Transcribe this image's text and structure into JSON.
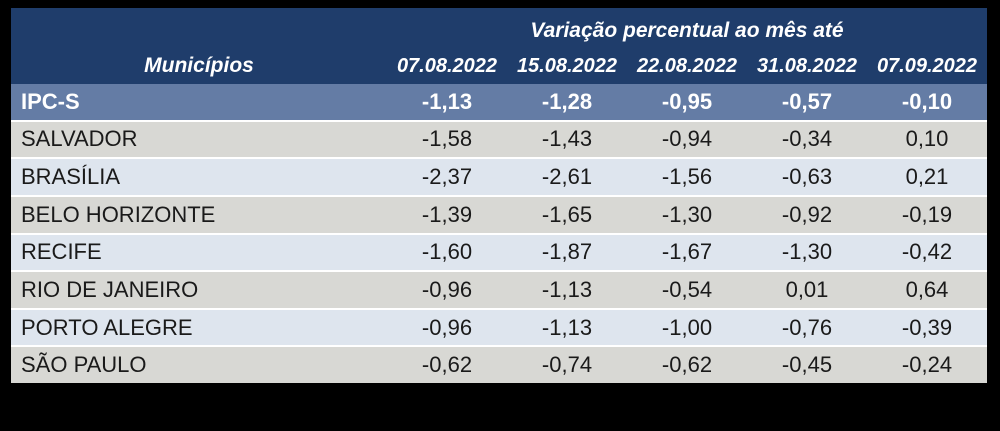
{
  "page": {
    "background_color": "#000000"
  },
  "table": {
    "title": "Variação percentual ao mês até",
    "label_column_header": "Municípios",
    "date_columns": [
      "07.08.2022",
      "15.08.2022",
      "22.08.2022",
      "31.08.2022",
      "07.09.2022"
    ],
    "colors": {
      "bg": "#000000",
      "navy": "#1F3D6B",
      "highlight": "#647CA5",
      "gray": "#D8D8D4",
      "blue": "#DEE5EE",
      "sep": "#FFFFFF"
    },
    "rows": [
      {
        "name": "IPC-S",
        "values": [
          "-1,13",
          "-1,28",
          "-0,95",
          "-0,57",
          "-0,10"
        ]
      },
      {
        "name": "SALVADOR",
        "values": [
          "-1,58",
          "-1,43",
          "-0,94",
          "-0,34",
          "0,10"
        ]
      },
      {
        "name": "BRASÍLIA",
        "values": [
          "-2,37",
          "-2,61",
          "-1,56",
          "-0,63",
          "0,21"
        ]
      },
      {
        "name": "BELO HORIZONTE",
        "values": [
          "-1,39",
          "-1,65",
          "-1,30",
          "-0,92",
          "-0,19"
        ]
      },
      {
        "name": "RECIFE",
        "values": [
          "-1,60",
          "-1,87",
          "-1,67",
          "-1,30",
          "-0,42"
        ]
      },
      {
        "name": "RIO DE JANEIRO",
        "values": [
          "-0,96",
          "-1,13",
          "-0,54",
          "0,01",
          "0,64"
        ]
      },
      {
        "name": "PORTO ALEGRE",
        "values": [
          "-0,96",
          "-1,13",
          "-1,00",
          "-0,76",
          "-0,39"
        ]
      },
      {
        "name": "SÃO PAULO",
        "values": [
          "-0,62",
          "-0,74",
          "-0,62",
          "-0,45",
          "-0,24"
        ]
      }
    ]
  },
  "chart_data": {
    "type": "table",
    "title": "Variação percentual ao mês até",
    "row_header_label": "Municípios",
    "columns": [
      "07.08.2022",
      "15.08.2022",
      "22.08.2022",
      "31.08.2022",
      "07.09.2022"
    ],
    "rows": [
      {
        "name": "IPC-S",
        "values": [
          -1.13,
          -1.28,
          -0.95,
          -0.57,
          -0.1
        ]
      },
      {
        "name": "SALVADOR",
        "values": [
          -1.58,
          -1.43,
          -0.94,
          -0.34,
          0.1
        ]
      },
      {
        "name": "BRASÍLIA",
        "values": [
          -2.37,
          -2.61,
          -1.56,
          -0.63,
          0.21
        ]
      },
      {
        "name": "BELO HORIZONTE",
        "values": [
          -1.39,
          -1.65,
          -1.3,
          -0.92,
          -0.19
        ]
      },
      {
        "name": "RECIFE",
        "values": [
          -1.6,
          -1.87,
          -1.67,
          -1.3,
          -0.42
        ]
      },
      {
        "name": "RIO DE JANEIRO",
        "values": [
          -0.96,
          -1.13,
          -0.54,
          0.01,
          0.64
        ]
      },
      {
        "name": "PORTO ALEGRE",
        "values": [
          -0.96,
          -1.13,
          -1.0,
          -0.76,
          -0.39
        ]
      },
      {
        "name": "SÃO PAULO",
        "values": [
          -0.62,
          -0.74,
          -0.62,
          -0.45,
          -0.24
        ]
      }
    ]
  }
}
